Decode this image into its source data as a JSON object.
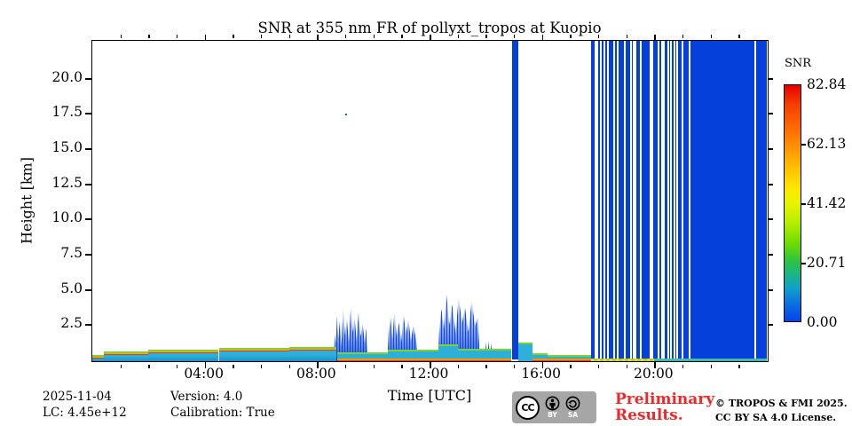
{
  "title": "SNR at 355 nm FR of pollyxt_tropos at Kuopio",
  "axes": {
    "xlabel": "Time [UTC]",
    "ylabel": "Height [km]",
    "x_ticks": [
      {
        "label": "04:00",
        "hour": 4
      },
      {
        "label": "08:00",
        "hour": 8
      },
      {
        "label": "12:00",
        "hour": 12
      },
      {
        "label": "16:00",
        "hour": 16
      },
      {
        "label": "20:00",
        "hour": 20
      }
    ],
    "y_ticks": [
      {
        "label": "2.5",
        "km": 2.5
      },
      {
        "label": "5.0",
        "km": 5.0
      },
      {
        "label": "7.5",
        "km": 7.5
      },
      {
        "label": "10.0",
        "km": 10.0
      },
      {
        "label": "12.5",
        "km": 12.5
      },
      {
        "label": "15.0",
        "km": 15.0
      },
      {
        "label": "17.5",
        "km": 17.5
      },
      {
        "label": "20.0",
        "km": 20.0
      }
    ]
  },
  "colorbar": {
    "title": "SNR",
    "tick_labels": [
      "82.84",
      "62.13",
      "41.42",
      "20.71",
      "0.00"
    ],
    "top_color": "#e60000",
    "bottom_color": "#0443e8"
  },
  "footer": {
    "date": "2025-11-04",
    "lc": "LC: 4.45e+12",
    "version": "Version: 4.0",
    "calibration": "Calibration: True",
    "preliminary_line1": "Preliminary",
    "preliminary_line2": "Results.",
    "copyright_line1": "© TROPOS & FMI 2025.",
    "copyright_line2": "CC BY SA 4.0 License.",
    "cc": "CC",
    "by": "BY",
    "sa": "SA"
  },
  "chart_data": {
    "type": "heatmap",
    "title": "SNR at 355 nm FR of pollyxt_tropos at Kuopio",
    "xlabel": "Time [UTC]",
    "ylabel": "Height [km]",
    "x_range_hours_utc": [
      0,
      24
    ],
    "y_range_km": [
      0,
      22.7
    ],
    "colorbar": {
      "label": "SNR",
      "min": 0.0,
      "max": 82.84,
      "ticks": [
        0.0,
        20.71,
        41.42,
        62.13,
        82.84
      ]
    },
    "wall_color": "#0540db",
    "features": {
      "aerosol_bands": [
        {
          "t0": 0.0,
          "t1": 0.4,
          "top_km": 0.45,
          "style": "warm_top"
        },
        {
          "t0": 0.4,
          "t1": 2.0,
          "top_km": 0.7,
          "style": "warm_top"
        },
        {
          "t0": 2.0,
          "t1": 4.5,
          "top_km": 0.8,
          "style": "warm_top"
        },
        {
          "t0": 4.5,
          "t1": 7.0,
          "top_km": 0.95,
          "style": "warm_top"
        },
        {
          "t0": 7.0,
          "t1": 8.7,
          "top_km": 1.0,
          "style": "warm_top"
        },
        {
          "t0": 8.7,
          "t1": 10.5,
          "top_km": 0.65,
          "style": "warm_bottom"
        },
        {
          "t0": 10.5,
          "t1": 12.3,
          "top_km": 0.85,
          "style": "warm_bottom"
        },
        {
          "t0": 12.3,
          "t1": 13.0,
          "top_km": 1.2,
          "style": "warm_bottom"
        },
        {
          "t0": 13.0,
          "t1": 14.9,
          "top_km": 0.9,
          "style": "warm_bottom"
        },
        {
          "t0": 15.17,
          "t1": 15.65,
          "top_km": 1.35,
          "style": "cyan"
        },
        {
          "t0": 15.65,
          "t1": 16.2,
          "top_km": 0.55,
          "style": "warm_bottom"
        },
        {
          "t0": 16.2,
          "t1": 17.75,
          "top_km": 0.45,
          "style": "warm_bottom"
        }
      ],
      "cloud_spike_clusters": [
        {
          "t0": 8.6,
          "t1": 9.8,
          "top_km": 4.3
        },
        {
          "t0": 10.5,
          "t1": 11.6,
          "top_km": 3.9
        },
        {
          "t0": 12.3,
          "t1": 13.8,
          "top_km": 5.2
        },
        {
          "t0": 13.9,
          "t1": 14.3,
          "top_km": 1.6
        }
      ],
      "full_height_stripe": {
        "t0": 14.93,
        "t1": 15.15
      },
      "saturated_wall": {
        "t0": 17.75,
        "t1": 24.0,
        "gap_times": [
          17.86,
          17.95,
          18.06,
          18.18,
          18.31,
          18.53,
          18.66,
          18.92,
          19.13,
          19.22,
          19.31,
          19.47,
          19.82,
          19.91,
          20.13,
          20.23,
          20.31,
          20.45,
          20.57,
          20.67,
          20.79,
          20.98,
          21.23,
          23.55
        ]
      },
      "ground_return": [
        {
          "t0": 17.75,
          "t1": 20.0,
          "style": "yellow"
        },
        {
          "t0": 20.0,
          "t1": 24.0,
          "style": "teal"
        }
      ],
      "isolated_point": {
        "t": 9.0,
        "km": 17.5
      }
    }
  }
}
